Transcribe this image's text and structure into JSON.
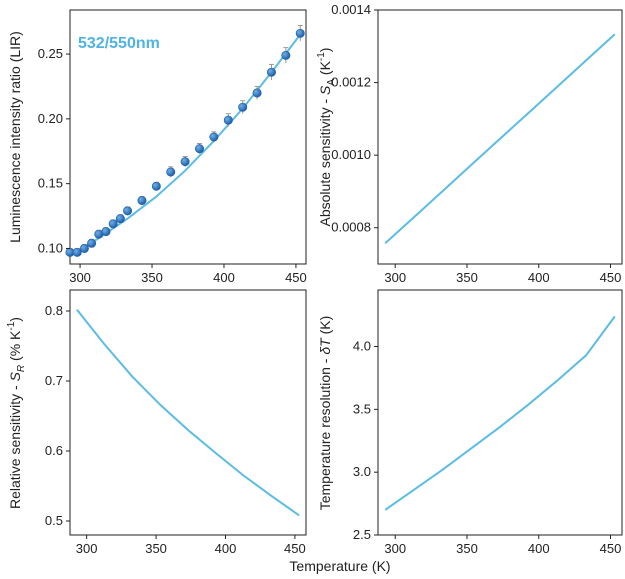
{
  "figure": {
    "shared_xlabel": "Temperature (K)"
  },
  "colors": {
    "line": "#5bbce4",
    "marker": "#1f5fa8",
    "marker_highlight": "#6fb0e8",
    "errorbar": "#9a9a9a",
    "inset_text": "#4fb3e3",
    "axis": "#222222"
  },
  "chart_data": [
    {
      "id": "lir",
      "type": "scatter",
      "inset_label": "532/550nm",
      "ylabel_parts": [
        "Luminescence intensity ratio (LIR)"
      ],
      "xlim": [
        293,
        457
      ],
      "ylim": [
        0.088,
        0.284
      ],
      "xticks": [
        300,
        350,
        400,
        450
      ],
      "yticks": [
        0.1,
        0.15,
        0.2,
        0.25
      ],
      "ytick_labels": [
        "0.10",
        "0.15",
        "0.20",
        "0.25"
      ],
      "points": {
        "x": [
          293,
          298,
          303,
          308,
          313,
          318,
          323,
          328,
          333,
          343,
          353,
          363,
          373,
          383,
          393,
          403,
          413,
          423,
          433,
          443,
          453
        ],
        "y": [
          0.097,
          0.097,
          0.1,
          0.104,
          0.111,
          0.113,
          0.119,
          0.123,
          0.129,
          0.137,
          0.148,
          0.159,
          0.167,
          0.177,
          0.186,
          0.199,
          0.209,
          0.22,
          0.236,
          0.249,
          0.266
        ],
        "yerr": [
          0.003,
          0.003,
          0.003,
          0.003,
          0.003,
          0.003,
          0.003,
          0.003,
          0.003,
          0.003,
          0.003,
          0.004,
          0.004,
          0.004,
          0.004,
          0.005,
          0.005,
          0.005,
          0.006,
          0.006,
          0.006
        ]
      },
      "fit": {
        "x": [
          293,
          313,
          333,
          353,
          373,
          393,
          413,
          433,
          453
        ],
        "y": [
          0.094,
          0.108,
          0.123,
          0.14,
          0.16,
          0.183,
          0.208,
          0.236,
          0.265
        ]
      }
    },
    {
      "id": "sa",
      "type": "line",
      "ylabel_parts": [
        "Absolute sensitivity - ",
        "S",
        "A",
        " (K",
        "-1",
        ")"
      ],
      "xlim": [
        288,
        458
      ],
      "ylim": [
        0.0007,
        0.0014
      ],
      "xticks": [
        300,
        350,
        400,
        450
      ],
      "yticks": [
        0.0008,
        0.001,
        0.0012,
        0.0014
      ],
      "ytick_labels": [
        "0.0008",
        "0.0010",
        "0.0012",
        "0.0014"
      ],
      "x": [
        293,
        313,
        333,
        353,
        373,
        393,
        413,
        433,
        453
      ],
      "y": [
        0.000757,
        0.000829,
        0.000901,
        0.000973,
        0.001045,
        0.001117,
        0.001189,
        0.001261,
        0.001333
      ]
    },
    {
      "id": "sr",
      "type": "line",
      "ylabel_parts": [
        "Relative sensitivity - ",
        "S",
        "R",
        " (% K",
        "-1",
        ")"
      ],
      "xlim": [
        288,
        458
      ],
      "ylim": [
        0.48,
        0.83
      ],
      "xticks": [
        300,
        350,
        400,
        450
      ],
      "yticks": [
        0.5,
        0.6,
        0.7,
        0.8
      ],
      "ytick_labels": [
        "0.5",
        "0.6",
        "0.7",
        "0.8"
      ],
      "x": [
        293,
        313,
        333,
        353,
        373,
        393,
        413,
        433,
        453
      ],
      "y": [
        0.802,
        0.752,
        0.706,
        0.666,
        0.63,
        0.597,
        0.565,
        0.536,
        0.508
      ]
    },
    {
      "id": "dt",
      "type": "line",
      "ylabel_parts": [
        "Temperature resolution - ",
        "δT",
        "",
        " (K)",
        "",
        ""
      ],
      "xlim": [
        288,
        458
      ],
      "ylim": [
        2.5,
        4.45
      ],
      "xticks": [
        300,
        350,
        400,
        450
      ],
      "yticks": [
        2.5,
        3.0,
        3.5,
        4.0
      ],
      "ytick_labels": [
        "2.5",
        "3.0",
        "3.5",
        "4.0"
      ],
      "x": [
        293,
        313,
        333,
        353,
        373,
        393,
        413,
        433,
        453
      ],
      "y": [
        2.7,
        2.86,
        3.02,
        3.19,
        3.36,
        3.54,
        3.73,
        3.93,
        4.24
      ]
    }
  ]
}
